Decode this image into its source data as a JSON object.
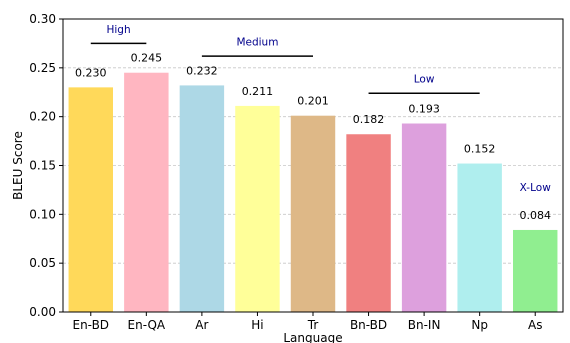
{
  "chart_data": {
    "type": "bar",
    "categories": [
      "En-BD",
      "En-QA",
      "Ar",
      "Hi",
      "Tr",
      "Bn-BD",
      "Bn-IN",
      "Np",
      "As"
    ],
    "values": [
      0.23,
      0.245,
      0.232,
      0.211,
      0.201,
      0.182,
      0.193,
      0.152,
      0.084
    ],
    "value_labels": [
      "0.230",
      "0.245",
      "0.232",
      "0.211",
      "0.201",
      "0.182",
      "0.193",
      "0.152",
      "0.084"
    ],
    "bar_colors": [
      "#ffd95a",
      "#ffb6c1",
      "#add8e6",
      "#ffff99",
      "#deb887",
      "#f08080",
      "#dda0dd",
      "#afeeee",
      "#90ee90"
    ],
    "xlabel": "Language",
    "ylabel": "BLEU Score",
    "ylim": [
      0,
      0.3
    ],
    "yticks": [
      "0.00",
      "0.05",
      "0.10",
      "0.15",
      "0.20",
      "0.25",
      "0.30"
    ],
    "grid": "y-dashed",
    "groups": [
      {
        "label": "High",
        "from": 0,
        "to": 1,
        "y_value": 0.275,
        "label_y_value": 0.29
      },
      {
        "label": "Medium",
        "from": 2,
        "to": 4,
        "y_value": 0.262,
        "label_y_value": 0.277
      },
      {
        "label": "Low",
        "from": 5,
        "to": 7,
        "y_value": 0.224,
        "label_y_value": 0.239
      },
      {
        "label": "X-Low",
        "from": 8,
        "to": 8,
        "y_value": null,
        "label_y_value": 0.128
      }
    ],
    "group_label_color": "#00008b",
    "group_line_color": "#000000"
  }
}
